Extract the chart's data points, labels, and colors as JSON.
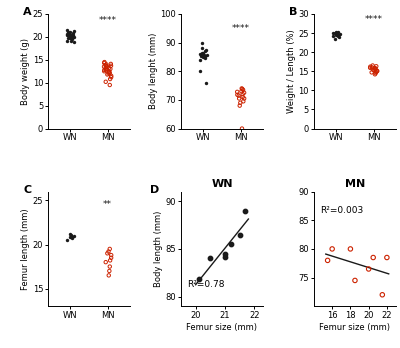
{
  "panel_A_WN_body_weight": [
    19.0,
    19.5,
    19.8,
    20.0,
    20.0,
    20.1,
    20.2,
    20.3,
    20.3,
    20.4,
    20.5,
    20.5,
    20.6,
    20.7,
    20.8,
    20.9,
    21.0,
    21.1,
    21.2,
    21.5,
    19.2,
    18.8,
    19.7
  ],
  "panel_A_MN_body_weight": [
    9.5,
    10.2,
    10.8,
    11.2,
    11.5,
    11.8,
    12.0,
    12.1,
    12.3,
    12.4,
    12.5,
    12.7,
    12.8,
    13.0,
    13.0,
    13.2,
    13.3,
    13.5,
    13.5,
    13.6,
    13.7,
    13.8,
    14.0,
    14.1,
    14.3,
    14.5
  ],
  "panel_A2_WN_body_length": [
    84.0,
    84.5,
    85.0,
    85.2,
    85.5,
    85.5,
    85.8,
    86.0,
    86.2,
    86.5,
    87.0,
    87.5,
    88.0,
    80.0,
    90.0,
    76.0,
    85.3,
    85.7
  ],
  "panel_A2_MN_body_length": [
    72.0,
    71.5,
    73.5,
    72.5,
    70.5,
    69.0,
    73.0,
    71.0,
    74.0,
    73.8,
    72.8,
    70.5,
    71.8,
    69.5,
    68.0,
    60.0
  ],
  "panel_B_WN_wl": [
    24.2,
    24.3,
    24.5,
    24.6,
    24.7,
    24.8,
    25.0,
    25.0,
    25.0,
    25.2,
    25.3,
    24.0,
    23.5
  ],
  "panel_B_MN_wl": [
    14.5,
    14.7,
    14.8,
    15.0,
    15.1,
    15.3,
    15.4,
    15.5,
    15.7,
    15.8,
    15.9,
    16.0,
    16.2,
    16.3,
    16.5,
    14.2
  ],
  "panel_C_WN_femur": [
    20.5,
    20.7,
    20.8,
    20.9,
    21.0,
    21.1,
    21.2
  ],
  "panel_C_MN_femur": [
    17.5,
    18.0,
    18.2,
    18.5,
    18.8,
    19.0,
    19.2,
    19.5,
    16.5,
    17.0
  ],
  "panel_D_WN_femur_x": [
    20.1,
    20.5,
    21.0,
    21.0,
    21.2,
    21.5,
    21.7
  ],
  "panel_D_WN_body_y": [
    81.8,
    84.0,
    84.2,
    84.5,
    85.5,
    86.5,
    89.0
  ],
  "panel_D_WN_r2": "0.78",
  "panel_D_MN_femur_x": [
    15.5,
    16.0,
    18.0,
    18.5,
    20.0,
    20.5,
    21.5,
    22.0
  ],
  "panel_D_MN_body_y": [
    78.0,
    80.0,
    80.0,
    74.5,
    76.5,
    78.5,
    72.0,
    78.5
  ],
  "panel_D_MN_r2": "0.003",
  "black_color": "#1a1a1a",
  "red_color": "#cc2200",
  "sig_4star": "****",
  "sig_2star": "**"
}
